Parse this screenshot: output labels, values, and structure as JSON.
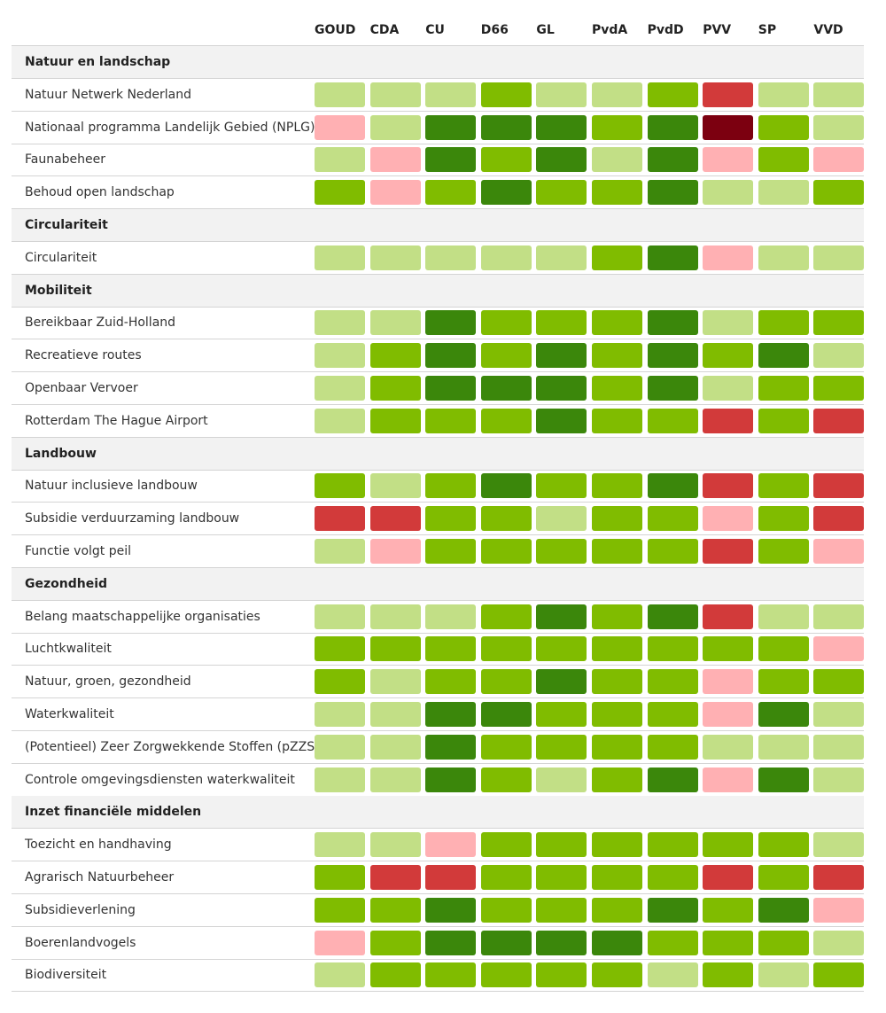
{
  "palette": {
    "light_green": "#c2df86",
    "green": "#80bc00",
    "dark_green": "#3b870b",
    "pink": "#ffb0b3",
    "red": "#d23a3a",
    "dark_red": "#7c0010"
  },
  "chart_data": {
    "type": "heatmap",
    "columns": [
      "GOUD",
      "CDA",
      "CU",
      "D66",
      "GL",
      "PvdA",
      "PvdD",
      "PVV",
      "SP",
      "VVD"
    ],
    "sections": [
      {
        "title": "Natuur en landschap",
        "rows": [
          {
            "label": "Natuur Netwerk Nederland",
            "cells": [
              "light_green",
              "light_green",
              "light_green",
              "green",
              "light_green",
              "light_green",
              "green",
              "red",
              "light_green",
              "light_green"
            ]
          },
          {
            "label": "Nationaal programma Landelijk Gebied (NPLG)",
            "cells": [
              "pink",
              "light_green",
              "dark_green",
              "dark_green",
              "dark_green",
              "green",
              "dark_green",
              "dark_red",
              "green",
              "light_green"
            ]
          },
          {
            "label": "Faunabeheer",
            "cells": [
              "light_green",
              "pink",
              "dark_green",
              "green",
              "dark_green",
              "light_green",
              "dark_green",
              "pink",
              "green",
              "pink"
            ]
          },
          {
            "label": "Behoud open landschap",
            "cells": [
              "green",
              "pink",
              "green",
              "dark_green",
              "green",
              "green",
              "dark_green",
              "light_green",
              "light_green",
              "green"
            ]
          }
        ]
      },
      {
        "title": "Circulariteit",
        "rows": [
          {
            "label": "Circulariteit",
            "cells": [
              "light_green",
              "light_green",
              "light_green",
              "light_green",
              "light_green",
              "green",
              "dark_green",
              "pink",
              "light_green",
              "light_green"
            ]
          }
        ]
      },
      {
        "title": "Mobiliteit",
        "rows": [
          {
            "label": "Bereikbaar Zuid-Holland",
            "cells": [
              "light_green",
              "light_green",
              "dark_green",
              "green",
              "green",
              "green",
              "dark_green",
              "light_green",
              "green",
              "green"
            ]
          },
          {
            "label": "Recreatieve routes",
            "cells": [
              "light_green",
              "green",
              "dark_green",
              "green",
              "dark_green",
              "green",
              "dark_green",
              "green",
              "dark_green",
              "light_green"
            ]
          },
          {
            "label": "Openbaar Vervoer",
            "cells": [
              "light_green",
              "green",
              "dark_green",
              "dark_green",
              "dark_green",
              "green",
              "dark_green",
              "light_green",
              "green",
              "green"
            ]
          },
          {
            "label": "Rotterdam The Hague Airport",
            "cells": [
              "light_green",
              "green",
              "green",
              "green",
              "dark_green",
              "green",
              "green",
              "red",
              "green",
              "red"
            ]
          }
        ]
      },
      {
        "title": "Landbouw",
        "rows": [
          {
            "label": "Natuur inclusieve landbouw",
            "cells": [
              "green",
              "light_green",
              "green",
              "dark_green",
              "green",
              "green",
              "dark_green",
              "red",
              "green",
              "red"
            ]
          },
          {
            "label": "Subsidie verduurzaming landbouw",
            "cells": [
              "red",
              "red",
              "green",
              "green",
              "light_green",
              "green",
              "green",
              "pink",
              "green",
              "red"
            ]
          },
          {
            "label": "Functie volgt peil",
            "cells": [
              "light_green",
              "pink",
              "green",
              "green",
              "green",
              "green",
              "green",
              "red",
              "green",
              "pink"
            ]
          }
        ]
      },
      {
        "title": "Gezondheid",
        "rows": [
          {
            "label": "Belang maatschappelijke organisaties",
            "cells": [
              "light_green",
              "light_green",
              "light_green",
              "green",
              "dark_green",
              "green",
              "dark_green",
              "red",
              "light_green",
              "light_green"
            ]
          },
          {
            "label": "Luchtkwaliteit",
            "cells": [
              "green",
              "green",
              "green",
              "green",
              "green",
              "green",
              "green",
              "green",
              "green",
              "pink"
            ]
          },
          {
            "label": "Natuur, groen, gezondheid",
            "cells": [
              "green",
              "light_green",
              "green",
              "green",
              "dark_green",
              "green",
              "green",
              "pink",
              "green",
              "green"
            ]
          },
          {
            "label": "Waterkwaliteit",
            "cells": [
              "light_green",
              "light_green",
              "dark_green",
              "dark_green",
              "green",
              "green",
              "green",
              "pink",
              "dark_green",
              "light_green"
            ]
          },
          {
            "label": "(Potentieel) Zeer Zorgwekkende Stoffen (pZZS)",
            "cells": [
              "light_green",
              "light_green",
              "dark_green",
              "green",
              "green",
              "green",
              "green",
              "light_green",
              "light_green",
              "light_green"
            ]
          },
          {
            "label": "Controle omgevingsdiensten waterkwaliteit",
            "cells": [
              "light_green",
              "light_green",
              "dark_green",
              "green",
              "light_green",
              "green",
              "dark_green",
              "pink",
              "dark_green",
              "light_green"
            ]
          }
        ]
      },
      {
        "title": "Inzet financiële middelen",
        "rows": [
          {
            "label": "Toezicht en handhaving",
            "cells": [
              "light_green",
              "light_green",
              "pink",
              "green",
              "green",
              "green",
              "green",
              "green",
              "green",
              "light_green"
            ]
          },
          {
            "label": "Agrarisch Natuurbeheer",
            "cells": [
              "green",
              "red",
              "red",
              "green",
              "green",
              "green",
              "green",
              "red",
              "green",
              "red"
            ]
          },
          {
            "label": "Subsidieverlening",
            "cells": [
              "green",
              "green",
              "dark_green",
              "green",
              "green",
              "green",
              "dark_green",
              "green",
              "dark_green",
              "pink"
            ]
          },
          {
            "label": "Boerenlandvogels",
            "cells": [
              "pink",
              "green",
              "dark_green",
              "dark_green",
              "dark_green",
              "dark_green",
              "green",
              "green",
              "green",
              "light_green"
            ]
          },
          {
            "label": "Biodiversiteit",
            "cells": [
              "light_green",
              "green",
              "green",
              "green",
              "green",
              "green",
              "light_green",
              "green",
              "light_green",
              "green"
            ]
          }
        ]
      }
    ]
  }
}
